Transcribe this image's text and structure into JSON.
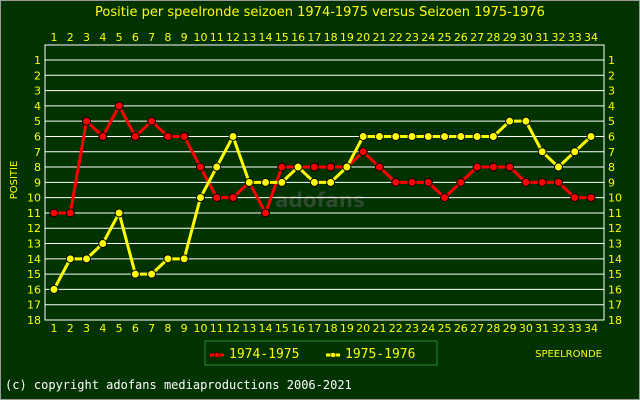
{
  "chart_data": {
    "type": "line",
    "title": "Positie per speelronde seizoen 1974-1975 versus Seizoen 1975-1976",
    "xlabel": "SPEELRONDE",
    "ylabel": "POSITIE",
    "x": [
      1,
      2,
      3,
      4,
      5,
      6,
      7,
      8,
      9,
      10,
      11,
      12,
      13,
      14,
      15,
      16,
      17,
      18,
      19,
      20,
      21,
      22,
      23,
      24,
      25,
      26,
      27,
      28,
      29,
      30,
      31,
      32,
      33,
      34
    ],
    "ylim": [
      18,
      1
    ],
    "y_ticks": [
      1,
      2,
      3,
      4,
      5,
      6,
      7,
      8,
      9,
      10,
      11,
      12,
      13,
      14,
      15,
      16,
      17,
      18
    ],
    "grid": true,
    "legend_position": "bottom-left",
    "series": [
      {
        "name": "1974-1975",
        "color": "#ff0000",
        "values": [
          11,
          11,
          5,
          6,
          4,
          6,
          5,
          6,
          6,
          8,
          10,
          10,
          9,
          11,
          8,
          8,
          8,
          8,
          8,
          7,
          8,
          9,
          9,
          9,
          10,
          9,
          8,
          8,
          8,
          9,
          9,
          9,
          10,
          10
        ]
      },
      {
        "name": "1975-1976",
        "color": "#ffff00",
        "values": [
          16,
          14,
          14,
          13,
          11,
          15,
          15,
          14,
          14,
          10,
          8,
          6,
          9,
          9,
          9,
          8,
          9,
          9,
          8,
          6,
          6,
          6,
          6,
          6,
          6,
          6,
          6,
          6,
          5,
          5,
          7,
          8,
          7,
          6
        ]
      }
    ]
  },
  "watermark": "adofans",
  "footer": "(c) copyright adofans mediaproductions 2006-2021",
  "colors": {
    "background": "#003300",
    "grid": "#ffffff",
    "text": "#ffff00",
    "legend_border": "#2a8a2a"
  }
}
